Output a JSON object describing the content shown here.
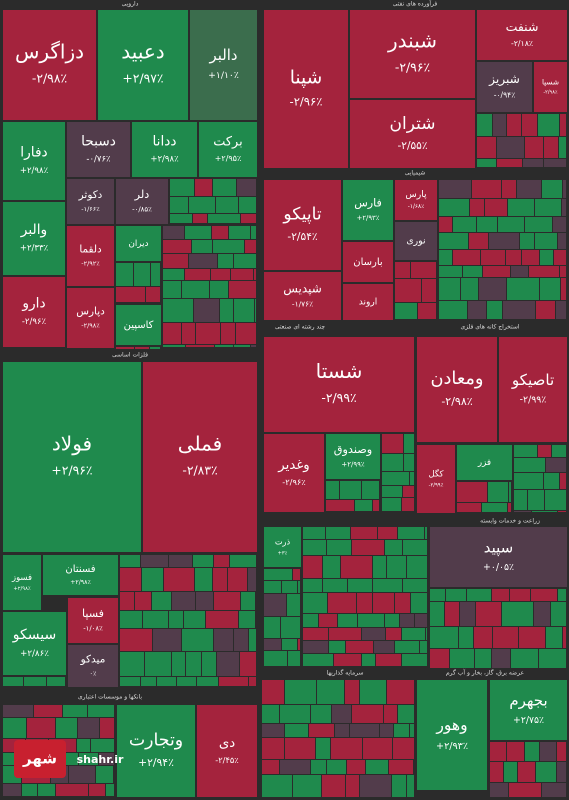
{
  "sections": [
    {
      "tiles": [
        {
          "name": "دزاگرس",
          "change": "-۲/۹۸٪",
          "color": "red"
        },
        {
          "name": "دعبید",
          "change": "+۲/۹۷٪",
          "color": "green"
        },
        {
          "name": "دالبر",
          "change": "+۱/۱۰٪",
          "color": "darkgreen"
        },
        {
          "name": "دفارا",
          "change": "+۲/۹۸٪",
          "color": "green"
        },
        {
          "name": "دسبحا",
          "change": "-۰/۷۶٪",
          "color": "gray"
        },
        {
          "name": "ددانا",
          "change": "+۲/۹۸٪",
          "color": "green"
        },
        {
          "name": "برکت",
          "change": "+۲/۹۵٪",
          "color": "green"
        },
        {
          "name": "والبر",
          "change": "+۲/۳۳٪",
          "color": "green"
        },
        {
          "name": "دارو",
          "change": "-۲/۹۶٪",
          "color": "red"
        },
        {
          "name": "دکوثر",
          "change": "-۱/۶۶٪",
          "color": "gray"
        },
        {
          "name": "دلر",
          "change": "-۰/۸۵٪",
          "color": "gray"
        },
        {
          "name": "دلقما",
          "change": "-۲/۹۲٪",
          "color": "red"
        },
        {
          "name": "دپارس",
          "change": "-۲/۹۸٪",
          "color": "red"
        },
        {
          "name": "دیران",
          "color": "green"
        },
        {
          "name": "کاسپین",
          "color": "green"
        }
      ]
    },
    {
      "tiles": [
        {
          "name": "شپنا",
          "change": "-۲/۹۶٪",
          "color": "red"
        },
        {
          "name": "شبندر",
          "change": "-۲/۹۶٪",
          "color": "red"
        },
        {
          "name": "شتران",
          "change": "-۲/۵۵٪",
          "color": "red"
        },
        {
          "name": "شنفت",
          "change": "-۲/۱۸٪",
          "color": "red"
        },
        {
          "name": "شبریز",
          "change": "-۰/۹۴٪",
          "color": "gray"
        },
        {
          "name": "شسپا",
          "change": "-۲/۹۸٪",
          "color": "red"
        }
      ]
    },
    {
      "tiles": [
        {
          "name": "تاپیکو",
          "change": "-۲/۵۴٪",
          "color": "red"
        },
        {
          "name": "شپدیس",
          "change": "-۱/۷۶٪",
          "color": "red"
        },
        {
          "name": "فارس",
          "change": "+۲/۹۳٪",
          "color": "green"
        },
        {
          "name": "پارس",
          "change": "-۱/۶۸٪",
          "color": "red"
        },
        {
          "name": "بارسان",
          "color": "red"
        },
        {
          "name": "نوری",
          "color": "gray"
        },
        {
          "name": "اروند",
          "color": "red"
        }
      ]
    },
    {
      "tiles": [
        {
          "name": "فولاد",
          "change": "+۲/۹۶٪",
          "color": "green"
        },
        {
          "name": "فملی",
          "change": "-۲/۸۳٪",
          "color": "red"
        },
        {
          "name": "فسوز",
          "change": "+۲/۹۸٪",
          "color": "green"
        },
        {
          "name": "فسنتان",
          "change": "+۲/۹۸٪",
          "color": "green"
        },
        {
          "name": "فسپا",
          "change": "-۱/۰۸٪",
          "color": "red"
        },
        {
          "name": "سیسکو",
          "change": "+۲/۸۶٪",
          "color": "green"
        },
        {
          "name": "میدکو",
          "change": "۰٪",
          "color": "gray"
        }
      ]
    },
    {
      "tiles": [
        {
          "name": "شستا",
          "change": "-۲/۹۹٪",
          "color": "red"
        },
        {
          "name": "وغدیر",
          "change": "-۲/۹۶٪",
          "color": "red"
        },
        {
          "name": "وصندوق",
          "change": "+۲/۹۹٪",
          "color": "green"
        }
      ]
    },
    {
      "tiles": [
        {
          "name": "ومعادن",
          "change": "-۲/۹۸٪",
          "color": "red"
        },
        {
          "name": "تاصیکو",
          "change": "-۲/۹۹٪",
          "color": "red"
        },
        {
          "name": "کگل",
          "change": "-۲/۹۹٪",
          "color": "red"
        },
        {
          "name": "فزر",
          "color": "green"
        }
      ]
    },
    {
      "tiles": [
        {
          "name": "ذرت",
          "change": "+۳٪",
          "color": "green"
        }
      ]
    },
    {
      "tiles": [
        {
          "name": "سپید",
          "change": "+۰/۰۵٪",
          "color": "gray"
        }
      ]
    },
    {
      "tiles": [
        {
          "name": "وتجارت",
          "change": "+۲/۹۴٪",
          "color": "green"
        },
        {
          "name": "دی",
          "change": "-۲/۴۵٪",
          "color": "red"
        }
      ]
    },
    {
      "tiles": [
        {
          "name": "وهور",
          "change": "+۲/۹۳٪",
          "color": "green"
        },
        {
          "name": "بجهرم",
          "change": "+۲/۷۵٪",
          "color": "green"
        }
      ]
    }
  ],
  "labels": [
    "دارویی",
    "فرآورده های نفتی",
    "شیمیایی",
    "چند رشته ای صنعتی",
    "استخراج کانه های فلزی",
    "فلزات اساسی",
    "زراعت و خدمات وابسته",
    "سرمایه گذاریها",
    "عرضه برق، گاز، بخار و آب گرم",
    "بانکها و موسسات اعتباری"
  ],
  "watermark": {
    "logo": "شهر",
    "site": "shahr.ir"
  }
}
